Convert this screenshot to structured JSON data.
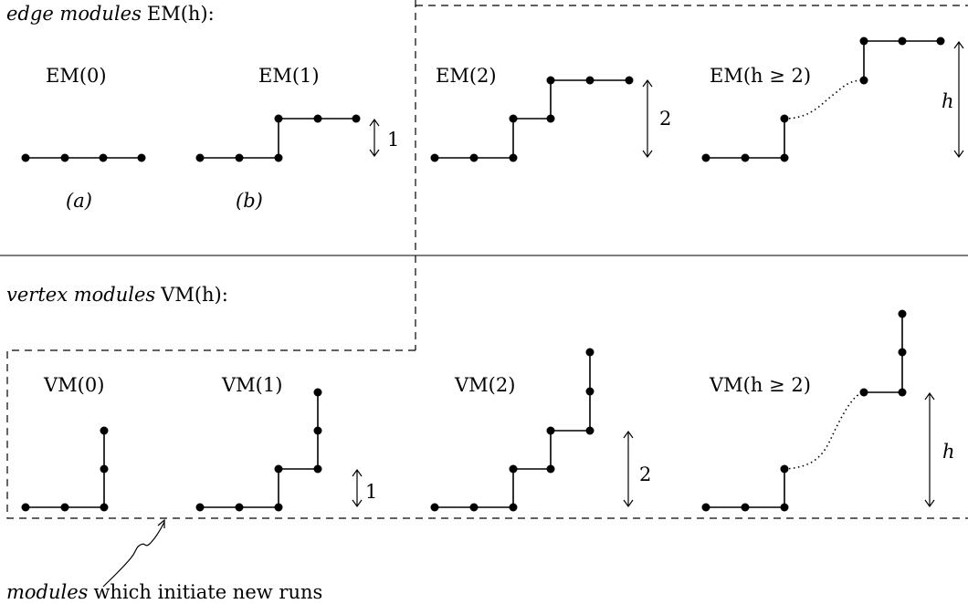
{
  "edge_section": {
    "title_italic": "edge modules",
    "title_rest": "EM(h):",
    "modules": [
      {
        "label": "EM(0)",
        "sub": "(a)"
      },
      {
        "label": "EM(1)",
        "sub": "(b)",
        "height": "1"
      },
      {
        "label": "EM(2)",
        "height": "2"
      },
      {
        "label": "EM(h ≥ 2)",
        "height": "h"
      }
    ]
  },
  "vertex_section": {
    "title_italic": "vertex modules",
    "title_rest": "VM(h):",
    "modules": [
      {
        "label": "VM(0)"
      },
      {
        "label": "VM(1)",
        "height": "1"
      },
      {
        "label": "VM(2)",
        "height": "2"
      },
      {
        "label": "VM(h ≥ 2)",
        "height": "h"
      }
    ]
  },
  "footnote": {
    "italic": "modules",
    "rest": "which initiate new runs"
  }
}
